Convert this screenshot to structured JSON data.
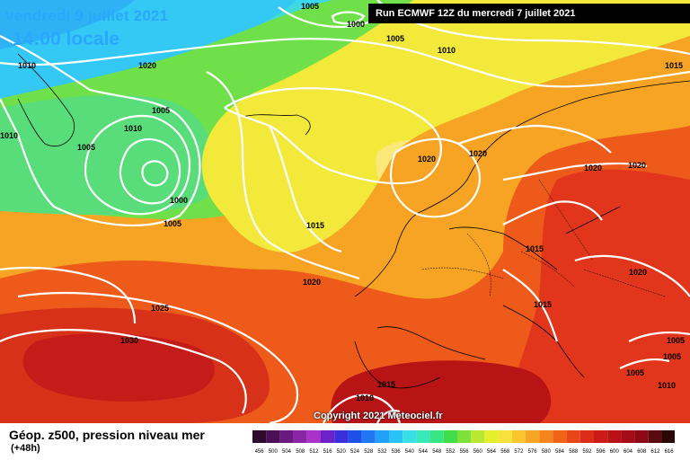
{
  "header": {
    "date_line": "vendredi 9 juillet 2021",
    "time_line": "14:00 locale",
    "run_line": "Run ECMWF 12Z du mercredi 7 juillet 2021"
  },
  "footer": {
    "parameter_title": "Géop. z500, pression niveau mer",
    "lead_time": "(+48h)",
    "copyright": "Copyright 2021 Meteociel.fr"
  },
  "color_scale": {
    "values": [
      "456",
      "500",
      "504",
      "508",
      "512",
      "516",
      "520",
      "524",
      "528",
      "532",
      "536",
      "540",
      "544",
      "548",
      "552",
      "556",
      "560",
      "564",
      "568",
      "572",
      "576",
      "580",
      "584",
      "588",
      "592",
      "596",
      "600",
      "604",
      "608",
      "612",
      "616"
    ],
    "colors": [
      "#2e0a2e",
      "#4b0f55",
      "#6a1a7e",
      "#8a26a6",
      "#a833c6",
      "#6b22c8",
      "#3a2fd8",
      "#1e4fe8",
      "#1f77f2",
      "#22a0f7",
      "#28c2f5",
      "#38e0e6",
      "#38e8b8",
      "#3ae684",
      "#40de4a",
      "#7ee03a",
      "#b8e830",
      "#e6ef2c",
      "#f7e23a",
      "#f8c72e",
      "#f7a623",
      "#f4851c",
      "#f06418",
      "#e84618",
      "#dc2d18",
      "#cc1a18",
      "#b81217",
      "#a40c17",
      "#8c0a15",
      "#5a0b10",
      "#2a0606"
    ]
  },
  "isobar_labels": [
    {
      "text": "1005"
    },
    {
      "text": "1000"
    },
    {
      "text": "1005"
    },
    {
      "text": "1010"
    },
    {
      "text": "1015"
    },
    {
      "text": "1010"
    },
    {
      "text": "1020"
    },
    {
      "text": "1010"
    },
    {
      "text": "1005"
    },
    {
      "text": "1010"
    },
    {
      "text": "1005"
    },
    {
      "text": "1000"
    },
    {
      "text": "1005"
    },
    {
      "text": "1020"
    },
    {
      "text": "1020"
    },
    {
      "text": "1020"
    },
    {
      "text": "1020"
    },
    {
      "text": "1015"
    },
    {
      "text": "1015"
    },
    {
      "text": "1020"
    },
    {
      "text": "1015"
    },
    {
      "text": "1025"
    },
    {
      "text": "1030"
    },
    {
      "text": "1020"
    },
    {
      "text": "1010"
    },
    {
      "text": "1015"
    },
    {
      "text": "1005"
    },
    {
      "text": "1005"
    },
    {
      "text": "1010"
    },
    {
      "text": "1005"
    }
  ]
}
